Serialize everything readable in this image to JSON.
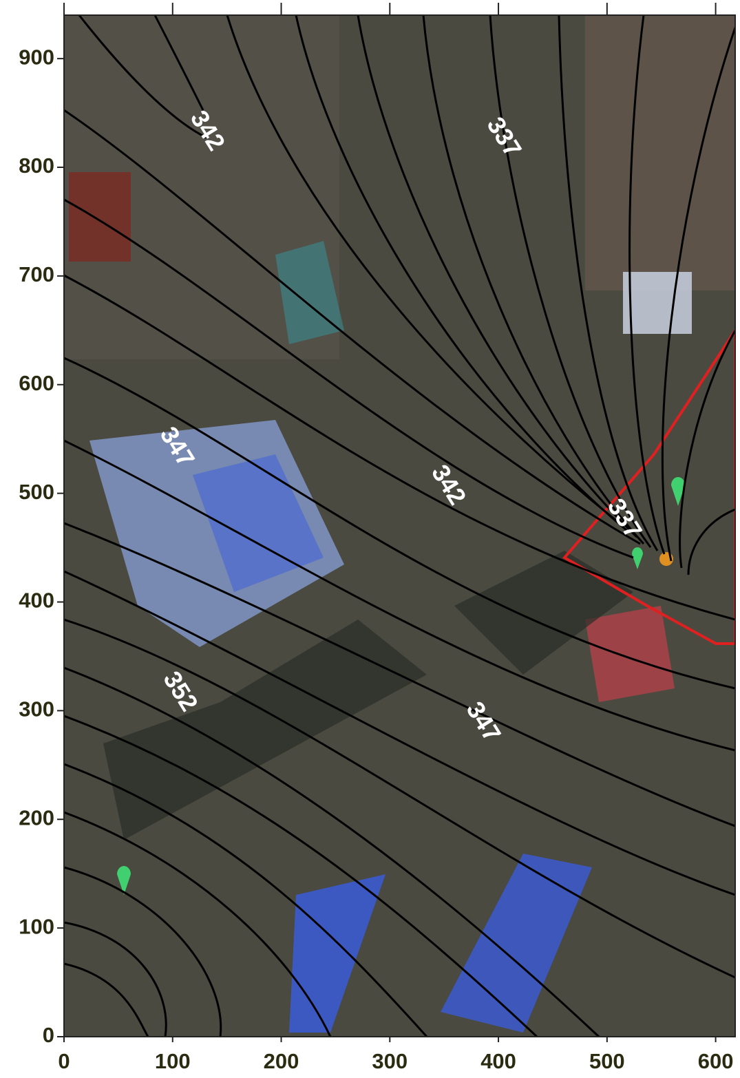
{
  "map": {
    "xlim": [
      0,
      618
    ],
    "ylim": [
      0,
      940
    ],
    "xticks": [
      0,
      100,
      200,
      300,
      400,
      500,
      600
    ],
    "yticks": [
      0,
      100,
      200,
      300,
      400,
      500,
      600,
      700,
      800,
      900
    ],
    "contour_labels": [
      {
        "text": "342",
        "x": 131,
        "y": 833
      },
      {
        "text": "337",
        "x": 404,
        "y": 827
      },
      {
        "text": "347",
        "x": 103,
        "y": 542
      },
      {
        "text": "342",
        "x": 353,
        "y": 507
      },
      {
        "text": "337",
        "x": 515,
        "y": 476
      },
      {
        "text": "352",
        "x": 106,
        "y": 317
      },
      {
        "text": "347",
        "x": 385,
        "y": 289
      }
    ]
  }
}
